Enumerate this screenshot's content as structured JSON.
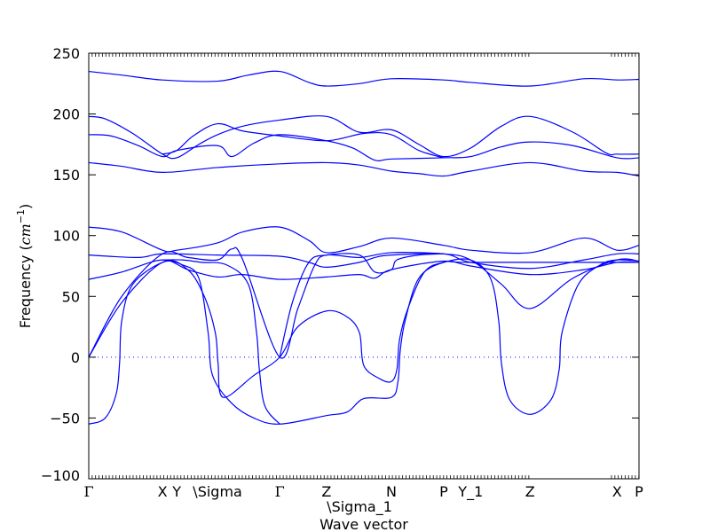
{
  "chart_data": {
    "type": "line",
    "title": "",
    "xlabel": "Wave vector",
    "ylabel": "Frequency (cm⁻¹)",
    "ylabel_parts": {
      "prefix": "Frequency (",
      "unit": "cm",
      "exponent": "−1",
      "suffix": ")"
    },
    "ylim": [
      -100,
      250
    ],
    "yticks": [
      -100,
      -50,
      0,
      50,
      100,
      150,
      200,
      250
    ],
    "ytick_labels": [
      "−100",
      "−50",
      "0",
      "50",
      "100",
      "150",
      "200",
      "250"
    ],
    "xlim": [
      0,
      100
    ],
    "xticks": [
      {
        "x": 0,
        "label": "Γ"
      },
      {
        "x": 13.4,
        "label": "X"
      },
      {
        "x": 16.0,
        "label": "Y"
      },
      {
        "x": 23.4,
        "label": "\\Sigma"
      },
      {
        "x": 34.7,
        "label": "Γ"
      },
      {
        "x": 43.2,
        "label": "Z"
      },
      {
        "x": 49.2,
        "label": "\\Sigma_1"
      },
      {
        "x": 55.0,
        "label": "N"
      },
      {
        "x": 64.5,
        "label": "P"
      },
      {
        "x": 69.4,
        "label": "Y_1"
      },
      {
        "x": 80.2,
        "label": "Z"
      },
      {
        "x": 96.0,
        "label": "X"
      },
      {
        "x": 100,
        "label": "P"
      }
    ],
    "zero_line": {
      "y": 0,
      "style": "dotted"
    },
    "line_color": "#0000ff",
    "grid": false,
    "legend": "none",
    "series": [
      {
        "points": [
          [
            0,
            235
          ],
          [
            6,
            232
          ],
          [
            13.4,
            228
          ],
          [
            23.4,
            227
          ],
          [
            29,
            232
          ],
          [
            34.7,
            235
          ],
          [
            40,
            226
          ],
          [
            43.2,
            223
          ],
          [
            49.2,
            225
          ],
          [
            55,
            229
          ],
          [
            64.5,
            228
          ],
          [
            69.4,
            226
          ],
          [
            80.2,
            223
          ],
          [
            90,
            229
          ],
          [
            96,
            228
          ],
          [
            100,
            228.5
          ]
        ]
      },
      {
        "points": [
          [
            0,
            198
          ],
          [
            3,
            196
          ],
          [
            8,
            184
          ],
          [
            13.4,
            167
          ],
          [
            16,
            164
          ],
          [
            20,
            175
          ],
          [
            23.4,
            183
          ],
          [
            28,
            190
          ],
          [
            34.7,
            195
          ],
          [
            43.2,
            198
          ],
          [
            49.2,
            185
          ],
          [
            55,
            187
          ],
          [
            60,
            175
          ],
          [
            64.5,
            165
          ],
          [
            69.4,
            172
          ],
          [
            75,
            190
          ],
          [
            80.2,
            198
          ],
          [
            88,
            185
          ],
          [
            94,
            168
          ],
          [
            96,
            167
          ],
          [
            100,
            167
          ]
        ]
      },
      {
        "points": [
          [
            0,
            183
          ],
          [
            4,
            182
          ],
          [
            9,
            174
          ],
          [
            13.4,
            165
          ],
          [
            16,
            170
          ],
          [
            23.4,
            174
          ],
          [
            26,
            165
          ],
          [
            30,
            176
          ],
          [
            34.7,
            183
          ],
          [
            43.2,
            178
          ],
          [
            48,
            172
          ],
          [
            52,
            162
          ],
          [
            55,
            163
          ],
          [
            64.5,
            164
          ],
          [
            69.4,
            165
          ],
          [
            75,
            173
          ],
          [
            80.2,
            177
          ],
          [
            88,
            174
          ],
          [
            96,
            164
          ],
          [
            100,
            164
          ]
        ]
      },
      {
        "points": [
          [
            13.4,
            167
          ],
          [
            16,
            170
          ],
          [
            19,
            182
          ],
          [
            23.4,
            192
          ],
          [
            28,
            186
          ],
          [
            34.7,
            182
          ],
          [
            43.2,
            178
          ],
          [
            50,
            184
          ],
          [
            55,
            183
          ],
          [
            60,
            170
          ],
          [
            64.5,
            164
          ]
        ]
      },
      {
        "points": [
          [
            0,
            160
          ],
          [
            6,
            157
          ],
          [
            13.4,
            152
          ],
          [
            23.4,
            156
          ],
          [
            34.7,
            159
          ],
          [
            43.2,
            160
          ],
          [
            49.2,
            158
          ],
          [
            55,
            153
          ],
          [
            60,
            151
          ],
          [
            64.5,
            149
          ],
          [
            69.4,
            153
          ],
          [
            80.2,
            160
          ],
          [
            90,
            153
          ],
          [
            96,
            152
          ],
          [
            100,
            149
          ]
        ]
      },
      {
        "points": [
          [
            0,
            107
          ],
          [
            6,
            103
          ],
          [
            13.4,
            88
          ],
          [
            16,
            88
          ],
          [
            23.4,
            94
          ],
          [
            28,
            103
          ],
          [
            34.7,
            107
          ],
          [
            40,
            96
          ],
          [
            43.2,
            86
          ],
          [
            49.2,
            91
          ],
          [
            55,
            98
          ],
          [
            64.5,
            92
          ],
          [
            69.4,
            88
          ],
          [
            80.2,
            86
          ],
          [
            90,
            98
          ],
          [
            96,
            88
          ],
          [
            100,
            92
          ]
        ]
      },
      {
        "points": [
          [
            0,
            84
          ],
          [
            9,
            82
          ],
          [
            13.4,
            85
          ],
          [
            23.4,
            84
          ],
          [
            34.7,
            83
          ],
          [
            40,
            78
          ],
          [
            43.2,
            74
          ],
          [
            49.2,
            78
          ],
          [
            52,
            82
          ],
          [
            55,
            84
          ],
          [
            64.5,
            85
          ],
          [
            69.4,
            78
          ],
          [
            80.2,
            73
          ],
          [
            90,
            80
          ],
          [
            96,
            85
          ],
          [
            100,
            85
          ]
        ]
      },
      {
        "points": [
          [
            0,
            64
          ],
          [
            6,
            70
          ],
          [
            13.4,
            80
          ],
          [
            18,
            72
          ],
          [
            23.4,
            66
          ],
          [
            28,
            68
          ],
          [
            34.7,
            64
          ],
          [
            43.2,
            66
          ],
          [
            49.2,
            68
          ],
          [
            52,
            65
          ],
          [
            55,
            72
          ],
          [
            64.5,
            79
          ],
          [
            69.4,
            75
          ],
          [
            80.2,
            68
          ],
          [
            90,
            72
          ],
          [
            96,
            78
          ],
          [
            100,
            78
          ]
        ]
      },
      {
        "points": [
          [
            0,
            0
          ],
          [
            6,
            50
          ],
          [
            13.4,
            85
          ],
          [
            18,
            82
          ],
          [
            23.4,
            80
          ],
          [
            26,
            89
          ],
          [
            28,
            80
          ],
          [
            34.7,
            0
          ],
          [
            38,
            40
          ],
          [
            41,
            75
          ],
          [
            43.2,
            84
          ],
          [
            49.2,
            82
          ],
          [
            55,
            86
          ],
          [
            64.5,
            85
          ],
          [
            69.4,
            80
          ],
          [
            75,
            60
          ],
          [
            80.2,
            40
          ],
          [
            88,
            65
          ],
          [
            96,
            80
          ],
          [
            100,
            79
          ]
        ]
      },
      {
        "points": [
          [
            0,
            0
          ],
          [
            6,
            45
          ],
          [
            13.4,
            78
          ],
          [
            18,
            72
          ],
          [
            21,
            50
          ],
          [
            23,
            20
          ],
          [
            23.5,
            -5
          ],
          [
            24.4,
            -33
          ],
          [
            30,
            -15
          ],
          [
            34.7,
            0
          ],
          [
            38,
            25
          ],
          [
            43.2,
            38
          ],
          [
            47,
            33
          ],
          [
            49.2,
            20
          ],
          [
            50,
            -7
          ],
          [
            53,
            -18
          ],
          [
            55,
            -20
          ],
          [
            56,
            -10
          ],
          [
            56.5,
            15
          ],
          [
            58,
            40
          ],
          [
            61,
            70
          ],
          [
            64.5,
            78
          ],
          [
            69.4,
            80
          ],
          [
            73,
            65
          ],
          [
            74.5,
            30
          ],
          [
            75,
            -5
          ],
          [
            76.5,
            -35
          ],
          [
            80.2,
            -47
          ],
          [
            84,
            -35
          ],
          [
            85.5,
            -10
          ],
          [
            86,
            20
          ],
          [
            89,
            60
          ],
          [
            93,
            76
          ],
          [
            96,
            80
          ],
          [
            100,
            79
          ]
        ]
      },
      {
        "points": [
          [
            0,
            -55
          ],
          [
            3,
            -50
          ],
          [
            5,
            -30
          ],
          [
            5.6,
            -5
          ],
          [
            6,
            30
          ],
          [
            8,
            60
          ],
          [
            13.4,
            78
          ],
          [
            17,
            76
          ],
          [
            20,
            65
          ],
          [
            21.7,
            20
          ],
          [
            22.5,
            -15
          ],
          [
            26,
            -38
          ],
          [
            30,
            -50
          ],
          [
            34.7,
            -55
          ],
          [
            43.2,
            -48
          ],
          [
            47,
            -45
          ],
          [
            50,
            -34
          ],
          [
            55,
            -33
          ],
          [
            56.2,
            -20
          ],
          [
            56.6,
            5
          ],
          [
            57.5,
            30
          ],
          [
            60,
            65
          ],
          [
            64.5,
            78
          ],
          [
            69.4,
            78
          ],
          [
            100,
            78
          ]
        ]
      },
      {
        "points": [
          [
            13.4,
            80
          ],
          [
            17,
            80
          ],
          [
            20.5,
            78
          ],
          [
            25,
            76
          ],
          [
            29,
            60
          ],
          [
            30.5,
            20
          ],
          [
            31,
            -10
          ],
          [
            32,
            -40
          ],
          [
            34.7,
            -55
          ]
        ]
      },
      {
        "points": [
          [
            34.7,
            0
          ],
          [
            37,
            45
          ],
          [
            40,
            78
          ],
          [
            43.2,
            84
          ],
          [
            49.2,
            84
          ],
          [
            52,
            70
          ],
          [
            55,
            72
          ],
          [
            56,
            80
          ],
          [
            60,
            84
          ],
          [
            64.5,
            85
          ]
        ]
      }
    ]
  }
}
